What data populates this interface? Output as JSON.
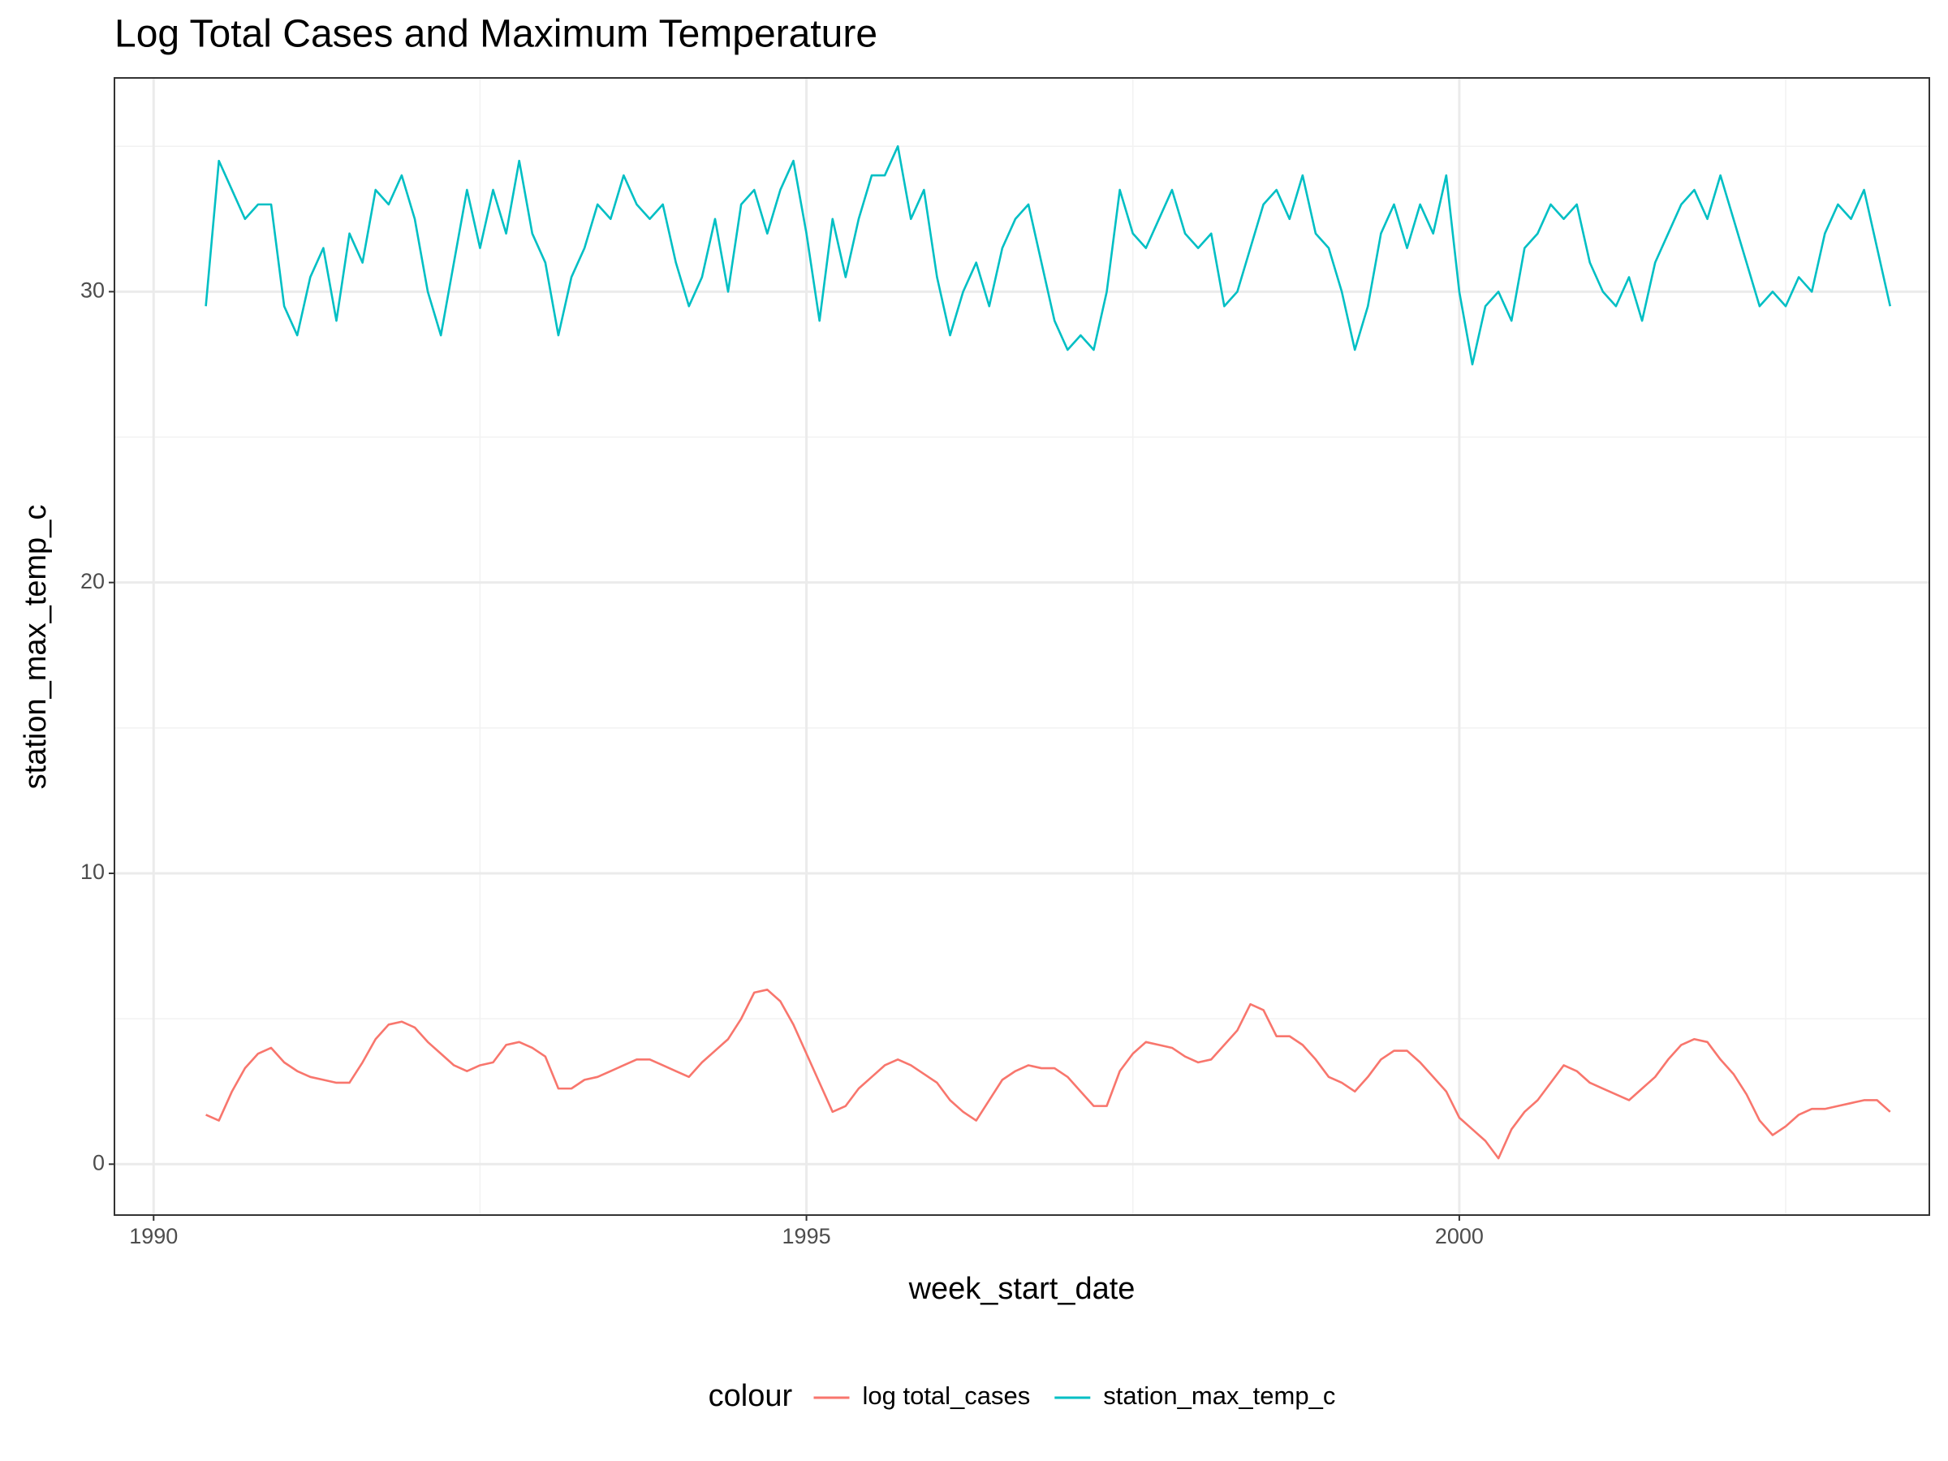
{
  "chart_data": {
    "type": "line",
    "title": "Log Total Cases and Maximum Temperature",
    "x_label": "week_start_date",
    "y_label": "station_max_temp_c",
    "legend_title": "colour",
    "legend_position": "bottom",
    "grid": true,
    "xlim": [
      1989.7,
      2003.6
    ],
    "xticks": [
      1990,
      1995,
      2000
    ],
    "x_minor_grid": [
      1992.5,
      1997.5,
      2002.5
    ],
    "ylim": [
      -1.75,
      37.35
    ],
    "yticks": [
      0,
      10,
      20,
      30
    ],
    "y_minor_grid": [
      5,
      15,
      25,
      35
    ],
    "x": [
      1990.4,
      1990.5,
      1990.6,
      1990.7,
      1990.8,
      1990.9,
      1991.0,
      1991.1,
      1991.2,
      1991.3,
      1991.4,
      1991.5,
      1991.6,
      1991.7,
      1991.8,
      1991.9,
      1992.0,
      1992.1,
      1992.2,
      1992.3,
      1992.4,
      1992.5,
      1992.6,
      1992.7,
      1992.8,
      1992.9,
      1993.0,
      1993.1,
      1993.2,
      1993.3,
      1993.4,
      1993.5,
      1993.6,
      1993.7,
      1993.8,
      1993.9,
      1994.0,
      1994.1,
      1994.2,
      1994.3,
      1994.4,
      1994.5,
      1994.6,
      1994.7,
      1994.8,
      1994.9,
      1995.0,
      1995.1,
      1995.2,
      1995.3,
      1995.4,
      1995.5,
      1995.6,
      1995.7,
      1995.8,
      1995.9,
      1996.0,
      1996.1,
      1996.2,
      1996.3,
      1996.4,
      1996.5,
      1996.6,
      1996.7,
      1996.8,
      1996.9,
      1997.0,
      1997.1,
      1997.2,
      1997.3,
      1997.4,
      1997.5,
      1997.6,
      1997.7,
      1997.8,
      1997.9,
      1998.0,
      1998.1,
      1998.2,
      1998.3,
      1998.4,
      1998.5,
      1998.6,
      1998.7,
      1998.8,
      1998.9,
      1999.0,
      1999.1,
      1999.2,
      1999.3,
      1999.4,
      1999.5,
      1999.6,
      1999.7,
      1999.8,
      1999.9,
      2000.0,
      2000.1,
      2000.2,
      2000.3,
      2000.4,
      2000.5,
      2000.6,
      2000.7,
      2000.8,
      2000.9,
      2001.0,
      2001.1,
      2001.2,
      2001.3,
      2001.4,
      2001.5,
      2001.6,
      2001.7,
      2001.8,
      2001.9,
      2002.0,
      2002.1,
      2002.2,
      2002.3,
      2002.4,
      2002.5,
      2002.6,
      2002.7,
      2002.8,
      2002.9,
      2003.0,
      2003.1,
      2003.2,
      2003.3
    ],
    "series": [
      {
        "name": "log total_cases",
        "color": "#F8766D",
        "values": [
          1.7,
          1.5,
          2.5,
          3.3,
          3.8,
          4.0,
          3.5,
          3.2,
          3.0,
          2.9,
          2.8,
          2.8,
          3.5,
          4.3,
          4.8,
          4.9,
          4.7,
          4.2,
          3.8,
          3.4,
          3.2,
          3.4,
          3.5,
          4.1,
          4.2,
          4.0,
          3.7,
          2.6,
          2.6,
          2.9,
          3.0,
          3.2,
          3.4,
          3.6,
          3.6,
          3.4,
          3.2,
          3.0,
          3.5,
          3.9,
          4.3,
          5.0,
          5.9,
          6.0,
          5.6,
          4.8,
          3.8,
          2.8,
          1.8,
          2.0,
          2.6,
          3.0,
          3.4,
          3.6,
          3.4,
          3.1,
          2.8,
          2.2,
          1.8,
          1.5,
          2.2,
          2.9,
          3.2,
          3.4,
          3.3,
          3.3,
          3.0,
          2.5,
          2.0,
          2.0,
          3.2,
          3.8,
          4.2,
          4.1,
          4.0,
          3.7,
          3.5,
          3.6,
          4.1,
          4.6,
          5.5,
          5.3,
          4.4,
          4.4,
          4.1,
          3.6,
          3.0,
          2.8,
          2.5,
          3.0,
          3.6,
          3.9,
          3.9,
          3.5,
          3.0,
          2.5,
          1.6,
          1.2,
          0.8,
          0.2,
          1.2,
          1.8,
          2.2,
          2.8,
          3.4,
          3.2,
          2.8,
          2.6,
          2.4,
          2.2,
          2.6,
          3.0,
          3.6,
          4.1,
          4.3,
          4.2,
          3.6,
          3.1,
          2.4,
          1.5,
          1.0,
          1.3,
          1.7,
          1.9,
          1.9,
          2.0,
          2.1,
          2.2,
          2.2,
          1.8
        ]
      },
      {
        "name": "station_max_temp_c",
        "color": "#00BFC4",
        "values": [
          29.5,
          34.5,
          33.5,
          32.5,
          33,
          33,
          29.5,
          28.5,
          30.5,
          31.5,
          29,
          32,
          31,
          33.5,
          33,
          34,
          32.5,
          30,
          28.5,
          31,
          33.5,
          31.5,
          33.5,
          32,
          34.5,
          32,
          31,
          28.5,
          30.5,
          31.5,
          33,
          32.5,
          34,
          33,
          32.5,
          33,
          31,
          29.5,
          30.5,
          32.5,
          30,
          33,
          33.5,
          32,
          33.5,
          34.5,
          32,
          29,
          32.5,
          30.5,
          32.5,
          34,
          34,
          35,
          32.5,
          33.5,
          30.5,
          28.5,
          30,
          31,
          29.5,
          31.5,
          32.5,
          33,
          31,
          29,
          28,
          28.5,
          28,
          30,
          33.5,
          32,
          31.5,
          32.5,
          33.5,
          32,
          31.5,
          32,
          29.5,
          30,
          31.5,
          33,
          33.5,
          32.5,
          34,
          32,
          31.5,
          30,
          28,
          29.5,
          32,
          33,
          31.5,
          33,
          32,
          34,
          30,
          27.5,
          29.5,
          30,
          29,
          31.5,
          32,
          33,
          32.5,
          33,
          31,
          30,
          29.5,
          30.5,
          29,
          31,
          32,
          33,
          33.5,
          32.5,
          34,
          32.5,
          31,
          29.5,
          30,
          29.5,
          30.5,
          30,
          32,
          33,
          32.5,
          33.5,
          31.5,
          29.5
        ]
      }
    ]
  }
}
